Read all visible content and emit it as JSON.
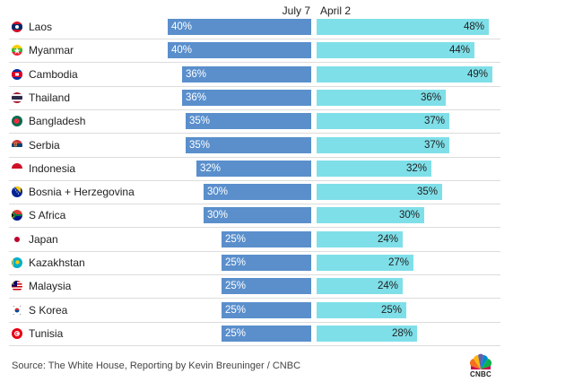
{
  "chart_data": {
    "type": "bar",
    "series": [
      {
        "name": "July 7",
        "color": "#5a8fcc",
        "values": [
          40,
          40,
          36,
          36,
          35,
          35,
          32,
          30,
          30,
          25,
          25,
          25,
          25,
          25
        ]
      },
      {
        "name": "April 2",
        "color": "#7fdfe8",
        "values": [
          48,
          44,
          49,
          36,
          37,
          37,
          32,
          35,
          30,
          24,
          27,
          24,
          25,
          28
        ]
      }
    ],
    "categories": [
      "Laos",
      "Myanmar",
      "Cambodia",
      "Thailand",
      "Bangladesh",
      "Serbia",
      "Indonesia",
      "Bosnia + Herzegovina",
      "S Africa",
      "Japan",
      "Kazakhstan",
      "Malaysia",
      "S Korea",
      "Tunisia"
    ],
    "value_labels": {
      "July 7": [
        "40%",
        "40%",
        "36%",
        "36%",
        "35%",
        "35%",
        "32%",
        "30%",
        "30%",
        "25%",
        "25%",
        "25%",
        "25%",
        "25%"
      ],
      "April 2": [
        "48%",
        "44%",
        "49%",
        "36%",
        "37%",
        "37%",
        "32%",
        "35%",
        "30%",
        "24%",
        "27%",
        "24%",
        "25%",
        "28%"
      ]
    },
    "flag_icons": [
      "laos-flag-icon",
      "myanmar-flag-icon",
      "cambodia-flag-icon",
      "thailand-flag-icon",
      "bangladesh-flag-icon",
      "serbia-flag-icon",
      "indonesia-flag-icon",
      "bosnia-flag-icon",
      "south-africa-flag-icon",
      "japan-flag-icon",
      "kazakhstan-flag-icon",
      "malaysia-flag-icon",
      "south-korea-flag-icon",
      "tunisia-flag-icon"
    ],
    "xlim": [
      0,
      50
    ],
    "layout": "diverging bars: July 7 extends left from center axis, April 2 extends right"
  },
  "headers": {
    "left": "July 7",
    "right": "April 2"
  },
  "source": "Source: The White House, Reporting by Kevin Breuninger / CNBC",
  "logo": "CNBC"
}
